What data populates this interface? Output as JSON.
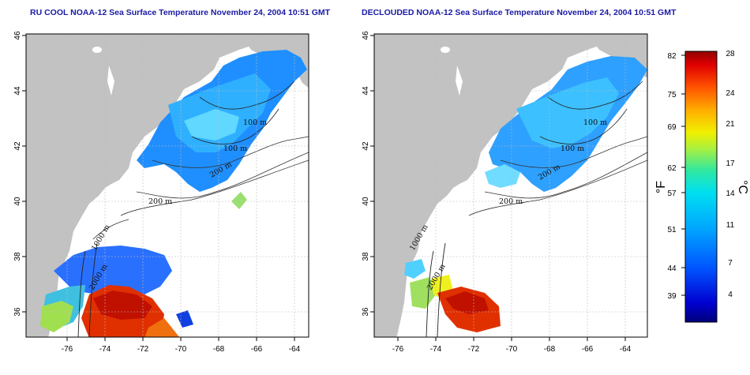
{
  "panels": [
    {
      "title": "RU COOL NOAA-12 Sea Surface Temperature November 24, 2004 10:51 GMT"
    },
    {
      "title": "DECLOUDED NOAA-12 Sea Surface Temperature November 24, 2004 10:51 GMT"
    }
  ],
  "axes": {
    "lon_ticks": [
      "-76",
      "-74",
      "-72",
      "-70",
      "-68",
      "-66",
      "-64"
    ],
    "lat_ticks": [
      "36",
      "38",
      "40",
      "42",
      "44",
      "46"
    ]
  },
  "contours": {
    "left": [
      "100 m",
      "100 m",
      "200 m",
      "200 m",
      "1000 m",
      "2000 m"
    ],
    "right": [
      "100 m",
      "100 m",
      "200 m",
      "200 m",
      "1000 m",
      "2000 m"
    ]
  },
  "colorbar": {
    "f_label": "°F",
    "c_label": "°C",
    "f_ticks": [
      "82",
      "75",
      "69",
      "62",
      "57",
      "51",
      "44",
      "39"
    ],
    "c_ticks": [
      "28",
      "24",
      "21",
      "17",
      "14",
      "11",
      "7",
      "4"
    ]
  },
  "colors": {
    "land": "#c2c2c2",
    "ocean": "#ffffff",
    "title": "#1a1aa6"
  }
}
